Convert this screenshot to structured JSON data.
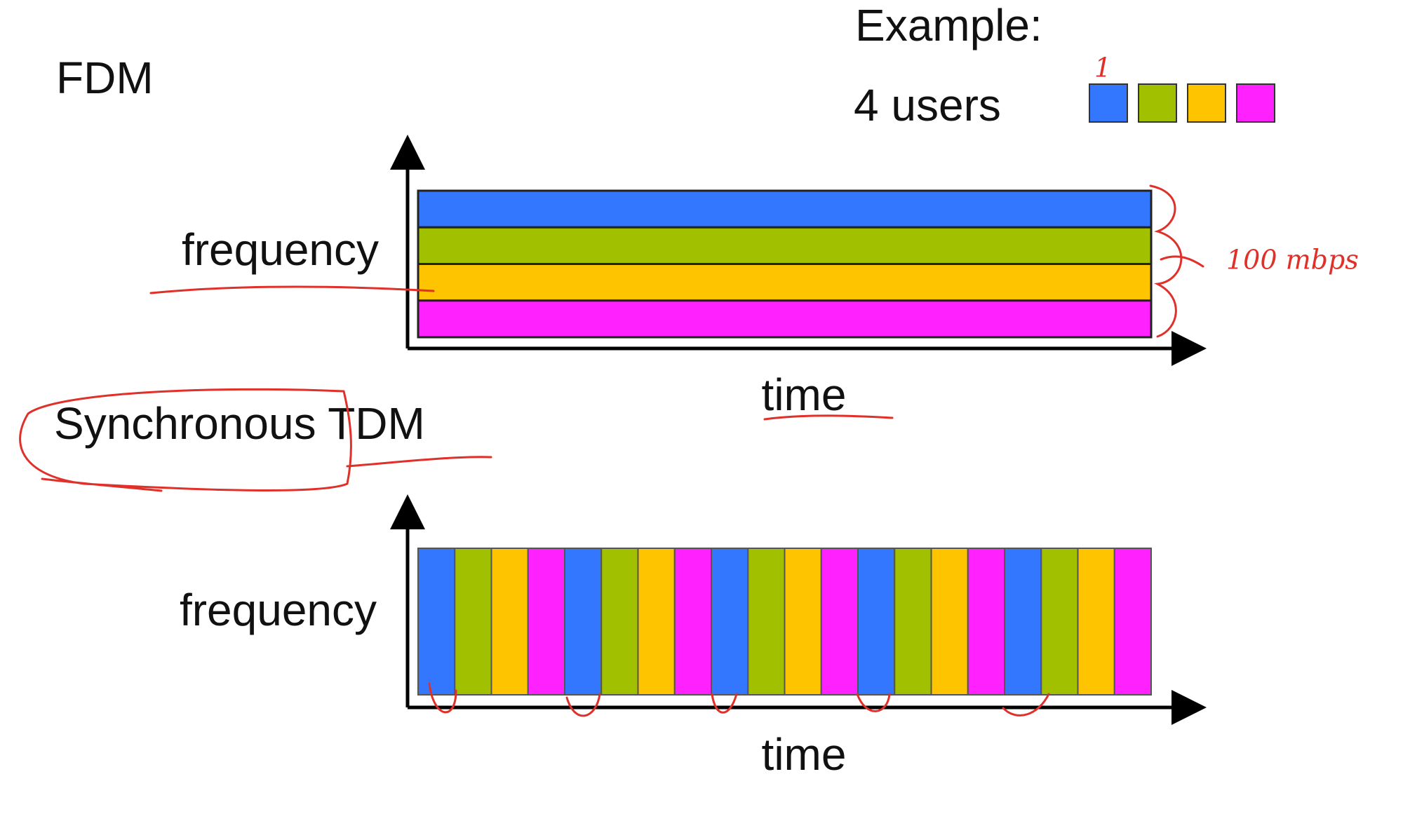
{
  "title": "FDM",
  "legend": {
    "label": "Example:",
    "users_label": "4 users",
    "colors": [
      "#3377ff",
      "#a0c000",
      "#ffc400",
      "#ff22ff"
    ]
  },
  "fdm": {
    "y_label": "frequency",
    "x_label": "time"
  },
  "tdm": {
    "title": "Synchronous TDM",
    "y_label": "frequency",
    "x_label": "time",
    "rounds": 5
  },
  "annotations": {
    "rate": "100 mbps",
    "user_mark": "1"
  }
}
